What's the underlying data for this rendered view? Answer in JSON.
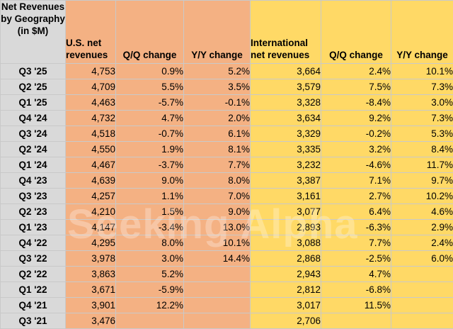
{
  "header": {
    "label": "Net Revenues by Geography (in $M)",
    "us_net": "U.S. net revenues",
    "us_qq": "Q/Q change",
    "us_yy": "Y/Y change",
    "intl_net": "International net revenues",
    "intl_qq": "Q/Q change",
    "intl_yy": "Y/Y change"
  },
  "colors": {
    "label_bg": "#d9d9d9",
    "us_bg": "#f4b183",
    "intl_bg": "#ffd966"
  },
  "watermark": "Seeking Alpha",
  "rows": [
    {
      "q": "Q3 '25",
      "us": "4,753",
      "us_qq": "0.9%",
      "us_yy": "5.2%",
      "intl": "3,664",
      "intl_qq": "2.4%",
      "intl_yy": "10.1%"
    },
    {
      "q": "Q2 '25",
      "us": "4,709",
      "us_qq": "5.5%",
      "us_yy": "3.5%",
      "intl": "3,579",
      "intl_qq": "7.5%",
      "intl_yy": "7.3%"
    },
    {
      "q": "Q1 '25",
      "us": "4,463",
      "us_qq": "-5.7%",
      "us_yy": "-0.1%",
      "intl": "3,328",
      "intl_qq": "-8.4%",
      "intl_yy": "3.0%"
    },
    {
      "q": "Q4 '24",
      "us": "4,732",
      "us_qq": "4.7%",
      "us_yy": "2.0%",
      "intl": "3,634",
      "intl_qq": "9.2%",
      "intl_yy": "7.3%"
    },
    {
      "q": "Q3 '24",
      "us": "4,518",
      "us_qq": "-0.7%",
      "us_yy": "6.1%",
      "intl": "3,329",
      "intl_qq": "-0.2%",
      "intl_yy": "5.3%"
    },
    {
      "q": "Q2 '24",
      "us": "4,550",
      "us_qq": "1.9%",
      "us_yy": "8.1%",
      "intl": "3,335",
      "intl_qq": "3.2%",
      "intl_yy": "8.4%"
    },
    {
      "q": "Q1 '24",
      "us": "4,467",
      "us_qq": "-3.7%",
      "us_yy": "7.7%",
      "intl": "3,232",
      "intl_qq": "-4.6%",
      "intl_yy": "11.7%"
    },
    {
      "q": "Q4 '23",
      "us": "4,639",
      "us_qq": "9.0%",
      "us_yy": "8.0%",
      "intl": "3,387",
      "intl_qq": "7.1%",
      "intl_yy": "9.7%"
    },
    {
      "q": "Q3 '23",
      "us": "4,257",
      "us_qq": "1.1%",
      "us_yy": "7.0%",
      "intl": "3,161",
      "intl_qq": "2.7%",
      "intl_yy": "10.2%"
    },
    {
      "q": "Q2 '23",
      "us": "4,210",
      "us_qq": "1.5%",
      "us_yy": "9.0%",
      "intl": "3,077",
      "intl_qq": "6.4%",
      "intl_yy": "4.6%"
    },
    {
      "q": "Q1 '23",
      "us": "4,147",
      "us_qq": "-3.4%",
      "us_yy": "13.0%",
      "intl": "2,893",
      "intl_qq": "-6.3%",
      "intl_yy": "2.9%"
    },
    {
      "q": "Q4 '22",
      "us": "4,295",
      "us_qq": "8.0%",
      "us_yy": "10.1%",
      "intl": "3,088",
      "intl_qq": "7.7%",
      "intl_yy": "2.4%"
    },
    {
      "q": "Q3 '22",
      "us": "3,978",
      "us_qq": "3.0%",
      "us_yy": "14.4%",
      "intl": "2,868",
      "intl_qq": "-2.5%",
      "intl_yy": "6.0%"
    },
    {
      "q": "Q2 '22",
      "us": "3,863",
      "us_qq": "5.2%",
      "us_yy": "",
      "intl": "2,943",
      "intl_qq": "4.7%",
      "intl_yy": ""
    },
    {
      "q": "Q1 '22",
      "us": "3,671",
      "us_qq": "-5.9%",
      "us_yy": "",
      "intl": "2,812",
      "intl_qq": "-6.8%",
      "intl_yy": ""
    },
    {
      "q": "Q4 '21",
      "us": "3,901",
      "us_qq": "12.2%",
      "us_yy": "",
      "intl": "3,017",
      "intl_qq": "11.5%",
      "intl_yy": ""
    },
    {
      "q": "Q3 '21",
      "us": "3,476",
      "us_qq": "",
      "us_yy": "",
      "intl": "2,706",
      "intl_qq": "",
      "intl_yy": ""
    }
  ]
}
